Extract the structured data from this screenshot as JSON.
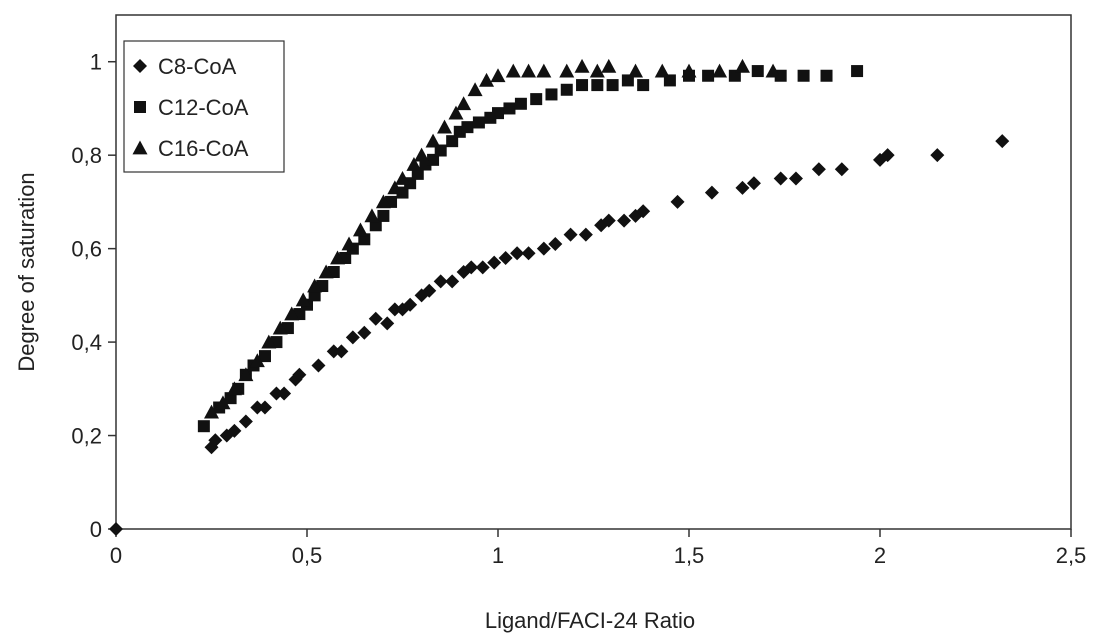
{
  "chart_data": {
    "type": "scatter",
    "title": "",
    "xlabel": "Ligand/FACI-24 Ratio",
    "ylabel": "Degree of saturation",
    "xlim": [
      0,
      2.5
    ],
    "ylim": [
      0,
      1.1
    ],
    "x_ticks": [
      0,
      0.5,
      1,
      1.5,
      2,
      2.5
    ],
    "x_tick_labels": [
      "0",
      "0,5",
      "1",
      "1,5",
      "2",
      "2,5"
    ],
    "y_ticks": [
      0,
      0.2,
      0.4,
      0.6,
      0.8,
      1
    ],
    "y_tick_labels": [
      "0",
      "0,2",
      "0,4",
      "0,6",
      "0,8",
      "1"
    ],
    "grid": false,
    "legend_position": "top-left",
    "marker_color": "#111111",
    "series": [
      {
        "name": "C8-CoA",
        "marker": "diamond",
        "points": [
          [
            0.0,
            0.0
          ],
          [
            0.25,
            0.175
          ],
          [
            0.26,
            0.19
          ],
          [
            0.29,
            0.2
          ],
          [
            0.31,
            0.21
          ],
          [
            0.34,
            0.23
          ],
          [
            0.37,
            0.26
          ],
          [
            0.39,
            0.26
          ],
          [
            0.42,
            0.29
          ],
          [
            0.44,
            0.29
          ],
          [
            0.47,
            0.32
          ],
          [
            0.48,
            0.33
          ],
          [
            0.53,
            0.35
          ],
          [
            0.57,
            0.38
          ],
          [
            0.59,
            0.38
          ],
          [
            0.62,
            0.41
          ],
          [
            0.65,
            0.42
          ],
          [
            0.68,
            0.45
          ],
          [
            0.71,
            0.44
          ],
          [
            0.73,
            0.47
          ],
          [
            0.75,
            0.47
          ],
          [
            0.77,
            0.48
          ],
          [
            0.8,
            0.5
          ],
          [
            0.82,
            0.51
          ],
          [
            0.85,
            0.53
          ],
          [
            0.88,
            0.53
          ],
          [
            0.91,
            0.55
          ],
          [
            0.93,
            0.56
          ],
          [
            0.96,
            0.56
          ],
          [
            0.99,
            0.57
          ],
          [
            1.02,
            0.58
          ],
          [
            1.05,
            0.59
          ],
          [
            1.08,
            0.59
          ],
          [
            1.12,
            0.6
          ],
          [
            1.15,
            0.61
          ],
          [
            1.19,
            0.63
          ],
          [
            1.23,
            0.63
          ],
          [
            1.27,
            0.65
          ],
          [
            1.29,
            0.66
          ],
          [
            1.33,
            0.66
          ],
          [
            1.36,
            0.67
          ],
          [
            1.38,
            0.68
          ],
          [
            1.47,
            0.7
          ],
          [
            1.56,
            0.72
          ],
          [
            1.64,
            0.73
          ],
          [
            1.67,
            0.74
          ],
          [
            1.74,
            0.75
          ],
          [
            1.78,
            0.75
          ],
          [
            1.84,
            0.77
          ],
          [
            1.9,
            0.77
          ],
          [
            2.0,
            0.79
          ],
          [
            2.02,
            0.8
          ],
          [
            2.15,
            0.8
          ],
          [
            2.32,
            0.83
          ]
        ]
      },
      {
        "name": "C12-CoA",
        "marker": "square",
        "points": [
          [
            0.23,
            0.22
          ],
          [
            0.27,
            0.26
          ],
          [
            0.3,
            0.28
          ],
          [
            0.32,
            0.3
          ],
          [
            0.34,
            0.33
          ],
          [
            0.36,
            0.35
          ],
          [
            0.39,
            0.37
          ],
          [
            0.42,
            0.4
          ],
          [
            0.45,
            0.43
          ],
          [
            0.48,
            0.46
          ],
          [
            0.5,
            0.48
          ],
          [
            0.52,
            0.5
          ],
          [
            0.54,
            0.52
          ],
          [
            0.57,
            0.55
          ],
          [
            0.6,
            0.58
          ],
          [
            0.62,
            0.6
          ],
          [
            0.65,
            0.62
          ],
          [
            0.68,
            0.65
          ],
          [
            0.7,
            0.67
          ],
          [
            0.72,
            0.7
          ],
          [
            0.75,
            0.72
          ],
          [
            0.77,
            0.74
          ],
          [
            0.79,
            0.76
          ],
          [
            0.81,
            0.78
          ],
          [
            0.83,
            0.79
          ],
          [
            0.85,
            0.81
          ],
          [
            0.88,
            0.83
          ],
          [
            0.9,
            0.85
          ],
          [
            0.92,
            0.86
          ],
          [
            0.95,
            0.87
          ],
          [
            0.98,
            0.88
          ],
          [
            1.0,
            0.89
          ],
          [
            1.03,
            0.9
          ],
          [
            1.06,
            0.91
          ],
          [
            1.1,
            0.92
          ],
          [
            1.14,
            0.93
          ],
          [
            1.18,
            0.94
          ],
          [
            1.22,
            0.95
          ],
          [
            1.26,
            0.95
          ],
          [
            1.3,
            0.95
          ],
          [
            1.34,
            0.96
          ],
          [
            1.38,
            0.95
          ],
          [
            1.45,
            0.96
          ],
          [
            1.5,
            0.97
          ],
          [
            1.55,
            0.97
          ],
          [
            1.62,
            0.97
          ],
          [
            1.68,
            0.98
          ],
          [
            1.74,
            0.97
          ],
          [
            1.8,
            0.97
          ],
          [
            1.86,
            0.97
          ],
          [
            1.94,
            0.98
          ]
        ]
      },
      {
        "name": "C16-CoA",
        "marker": "triangle",
        "points": [
          [
            0.25,
            0.25
          ],
          [
            0.28,
            0.27
          ],
          [
            0.31,
            0.3
          ],
          [
            0.34,
            0.33
          ],
          [
            0.37,
            0.36
          ],
          [
            0.4,
            0.4
          ],
          [
            0.43,
            0.43
          ],
          [
            0.46,
            0.46
          ],
          [
            0.49,
            0.49
          ],
          [
            0.52,
            0.52
          ],
          [
            0.55,
            0.55
          ],
          [
            0.58,
            0.58
          ],
          [
            0.61,
            0.61
          ],
          [
            0.64,
            0.64
          ],
          [
            0.67,
            0.67
          ],
          [
            0.7,
            0.7
          ],
          [
            0.73,
            0.73
          ],
          [
            0.75,
            0.75
          ],
          [
            0.78,
            0.78
          ],
          [
            0.8,
            0.8
          ],
          [
            0.83,
            0.83
          ],
          [
            0.86,
            0.86
          ],
          [
            0.89,
            0.89
          ],
          [
            0.91,
            0.91
          ],
          [
            0.94,
            0.94
          ],
          [
            0.97,
            0.96
          ],
          [
            1.0,
            0.97
          ],
          [
            1.04,
            0.98
          ],
          [
            1.08,
            0.98
          ],
          [
            1.12,
            0.98
          ],
          [
            1.18,
            0.98
          ],
          [
            1.22,
            0.99
          ],
          [
            1.26,
            0.98
          ],
          [
            1.29,
            0.99
          ],
          [
            1.36,
            0.98
          ],
          [
            1.43,
            0.98
          ],
          [
            1.5,
            0.98
          ],
          [
            1.58,
            0.98
          ],
          [
            1.64,
            0.99
          ],
          [
            1.72,
            0.98
          ]
        ]
      }
    ]
  }
}
